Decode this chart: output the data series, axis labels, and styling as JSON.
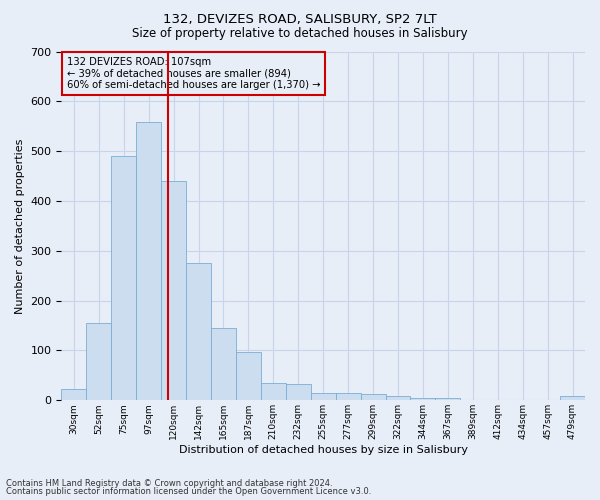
{
  "title": "132, DEVIZES ROAD, SALISBURY, SP2 7LT",
  "subtitle": "Size of property relative to detached houses in Salisbury",
  "xlabel": "Distribution of detached houses by size in Salisbury",
  "ylabel": "Number of detached properties",
  "categories": [
    "30sqm",
    "52sqm",
    "75sqm",
    "97sqm",
    "120sqm",
    "142sqm",
    "165sqm",
    "187sqm",
    "210sqm",
    "232sqm",
    "255sqm",
    "277sqm",
    "299sqm",
    "322sqm",
    "344sqm",
    "367sqm",
    "389sqm",
    "412sqm",
    "434sqm",
    "457sqm",
    "479sqm"
  ],
  "values": [
    22,
    155,
    490,
    558,
    440,
    275,
    145,
    97,
    35,
    32,
    15,
    15,
    12,
    8,
    5,
    5,
    0,
    0,
    0,
    0,
    8
  ],
  "bar_color": "#ccddf0",
  "bar_edge_color": "#7aadd4",
  "bar_edge_width": 0.6,
  "grid_color": "#c8d4e8",
  "background_color": "#e8eef8",
  "ylim": [
    0,
    700
  ],
  "yticks": [
    0,
    100,
    200,
    300,
    400,
    500,
    600,
    700
  ],
  "property_line_x": 3.77,
  "property_line_color": "#cc0000",
  "annotation_text": "132 DEVIZES ROAD: 107sqm\n← 39% of detached houses are smaller (894)\n60% of semi-detached houses are larger (1,370) →",
  "annotation_box_color": "#cc0000",
  "annotation_text_color": "#000000",
  "footnote1": "Contains HM Land Registry data © Crown copyright and database right 2024.",
  "footnote2": "Contains public sector information licensed under the Open Government Licence v3.0."
}
